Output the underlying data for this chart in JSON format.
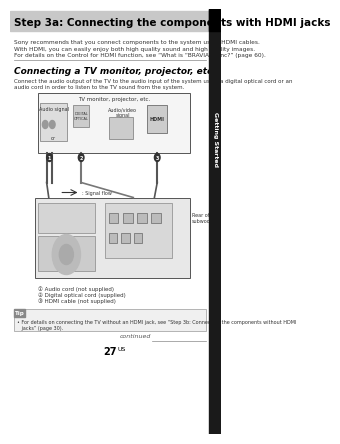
{
  "title": "Step 3a: Connecting the components with HDMI jacks",
  "title_bg": "#c8c8c8",
  "title_color": "#000000",
  "sidebar_text": "Getting Started",
  "sidebar_bg": "#3a3a3a",
  "body_text_lines": [
    "Sony recommends that you connect components to the system using HDMI cables.",
    "With HDMI, you can easily enjoy both high quality sound and high quality images.",
    "For details on the Control for HDMI function, see “What is “BRAVIA” Sync?” (page 60)."
  ],
  "section_title": "Connecting a TV monitor, projector, etc.",
  "section_body": "Connect the audio output of the TV to the audio input of the system using a digital optical cord or an\naudio cord in order to listen to the TV sound from the system.",
  "diagram_tv_label": "TV monitor, projector, etc.",
  "diagram_audio_label": "Audio signal",
  "diagram_or": "or",
  "diagram_av_label": "Audio/video\nsignal",
  "diagram_hdmi_label": "HDMI",
  "diagram_rear_label": "Rear of the\nsubwoofer",
  "diagram_signal_label": ": Signal flow",
  "legend_items": [
    "① Audio cord (not supplied)",
    "② Digital optical cord (supplied)",
    "③ HDMI cable (not supplied)"
  ],
  "tip_label": "Tip",
  "tip_text": "• For details on connecting the TV without an HDMI jack, see “Step 3b: Connecting the components without HDMI\n   jacks” (page 30).",
  "continued_text": "continued",
  "page_number": "27",
  "superscript": "US",
  "bg_color": "#ffffff",
  "header_bar_color": "#888888",
  "section_line_color": "#888888"
}
